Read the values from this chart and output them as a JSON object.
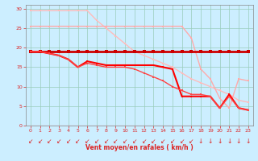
{
  "xlabel": "Vent moyen/en rafales ( km/h )",
  "background_color": "#cceeff",
  "grid_color": "#99ccbb",
  "xlim": [
    -0.5,
    23.5
  ],
  "ylim": [
    0,
    31
  ],
  "yticks": [
    0,
    5,
    10,
    15,
    20,
    25,
    30
  ],
  "xticks": [
    0,
    1,
    2,
    3,
    4,
    5,
    6,
    7,
    8,
    9,
    10,
    11,
    12,
    13,
    14,
    15,
    16,
    17,
    18,
    19,
    20,
    21,
    22,
    23
  ],
  "lines": [
    {
      "x": [
        0,
        1,
        2,
        3,
        4,
        5,
        6,
        7,
        8,
        9,
        10,
        11,
        12,
        13,
        14,
        15,
        16,
        17,
        18,
        19,
        20,
        21,
        22,
        23
      ],
      "y": [
        29.5,
        29.5,
        29.5,
        29.5,
        29.5,
        29.5,
        29.5,
        27,
        25,
        23,
        21,
        19,
        18,
        17,
        16,
        15,
        13.5,
        12,
        11,
        10,
        9,
        8,
        6.5,
        6
      ],
      "color": "#ffbbbb",
      "lw": 1.0,
      "marker": "s",
      "ms": 2.0
    },
    {
      "x": [
        0,
        1,
        2,
        3,
        4,
        5,
        6,
        7,
        8,
        9,
        10,
        11,
        12,
        13,
        14,
        15,
        16,
        17,
        18,
        19,
        20,
        21,
        22,
        23
      ],
      "y": [
        25.5,
        25.5,
        25.5,
        25.5,
        25.5,
        25.5,
        25.5,
        25.5,
        25.5,
        25.5,
        25.5,
        25.5,
        25.5,
        25.5,
        25.5,
        25.5,
        25.5,
        22.5,
        14.5,
        12,
        7,
        4.5,
        12,
        11.5
      ],
      "color": "#ffaaaa",
      "lw": 1.0,
      "marker": "s",
      "ms": 2.0
    },
    {
      "x": [
        0,
        1,
        2,
        3,
        4,
        5,
        6,
        7,
        8,
        9,
        10,
        11,
        12,
        13,
        14,
        15,
        16,
        17,
        18,
        19,
        20,
        21,
        22,
        23
      ],
      "y": [
        19,
        19,
        19,
        19,
        19,
        19,
        19,
        19,
        19,
        19,
        19,
        19,
        19,
        19,
        19,
        19,
        19,
        19,
        19,
        19,
        19,
        19,
        19,
        19
      ],
      "color": "#cc0000",
      "lw": 2.0,
      "marker": "s",
      "ms": 2.5
    },
    {
      "x": [
        0,
        1,
        2,
        3,
        4,
        5,
        6,
        7,
        8,
        9,
        10,
        11,
        12,
        13,
        14,
        15,
        16,
        17,
        18,
        19,
        20,
        21,
        22,
        23
      ],
      "y": [
        19,
        19,
        18.5,
        18,
        17,
        15,
        16.5,
        16,
        15.5,
        15.5,
        15.5,
        15.5,
        15.5,
        15.5,
        15,
        14.5,
        7.5,
        7.5,
        7.5,
        7.5,
        4.5,
        8,
        4.5,
        4
      ],
      "color": "#ff0000",
      "lw": 1.5,
      "marker": "s",
      "ms": 2.0
    },
    {
      "x": [
        0,
        1,
        2,
        3,
        4,
        5,
        6,
        7,
        8,
        9,
        10,
        11,
        12,
        13,
        14,
        15,
        16,
        17,
        18,
        19,
        20,
        21,
        22,
        23
      ],
      "y": [
        19,
        19,
        18.5,
        18,
        17,
        15,
        16,
        15.5,
        15,
        15,
        15,
        14.5,
        13.5,
        12.5,
        11.5,
        10,
        9,
        8,
        8,
        7.5,
        4.5,
        7.5,
        4.5,
        4
      ],
      "color": "#ff4444",
      "lw": 1.0,
      "marker": "s",
      "ms": 2.0
    }
  ],
  "arrow_color": "#dd2222",
  "arrow_fontsize": 5.5,
  "arrows": [
    "↙",
    "↙",
    "↙",
    "↙",
    "↙",
    "↙",
    "↙",
    "↙",
    "↙",
    "↙",
    "↙",
    "↙",
    "↙",
    "↙",
    "↙",
    "↙",
    "↙",
    "↙",
    "↓",
    "↓",
    "↓",
    "↓",
    "↓",
    "↓"
  ]
}
